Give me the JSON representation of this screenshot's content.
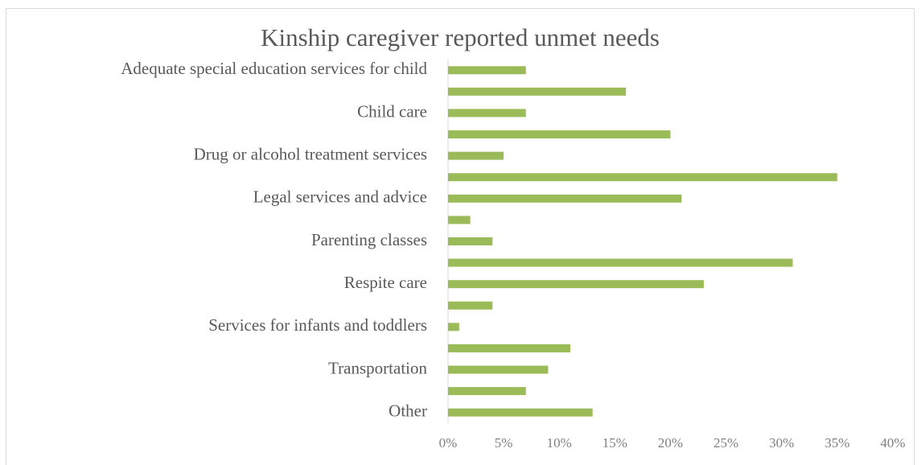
{
  "chart_data": {
    "type": "bar",
    "orientation": "horizontal",
    "title": "Kinship caregiver reported unmet needs",
    "categories": [
      "Adequate special education services for child",
      null,
      "Child care",
      null,
      "Drug or alcohol treatment services",
      null,
      "Legal services and advice",
      null,
      "Parenting classes",
      null,
      "Respite care",
      null,
      "Services for infants and toddlers",
      null,
      "Transportation",
      null,
      "Other"
    ],
    "values": [
      7,
      16,
      7,
      20,
      5,
      35,
      21,
      2,
      4,
      31,
      23,
      4,
      1,
      11,
      9,
      7,
      13
    ],
    "color": "#9bbb59",
    "xlim": [
      0,
      40
    ],
    "xticks": [
      {
        "value": 0,
        "label": "0%"
      },
      {
        "value": 5,
        "label": "5%"
      },
      {
        "value": 10,
        "label": "10%"
      },
      {
        "value": 15,
        "label": "15%"
      },
      {
        "value": 20,
        "label": "20%"
      },
      {
        "value": 25,
        "label": "25%"
      },
      {
        "value": 30,
        "label": "30%"
      },
      {
        "value": 35,
        "label": "35%"
      },
      {
        "value": 40,
        "label": "40%"
      }
    ],
    "grid": false
  }
}
